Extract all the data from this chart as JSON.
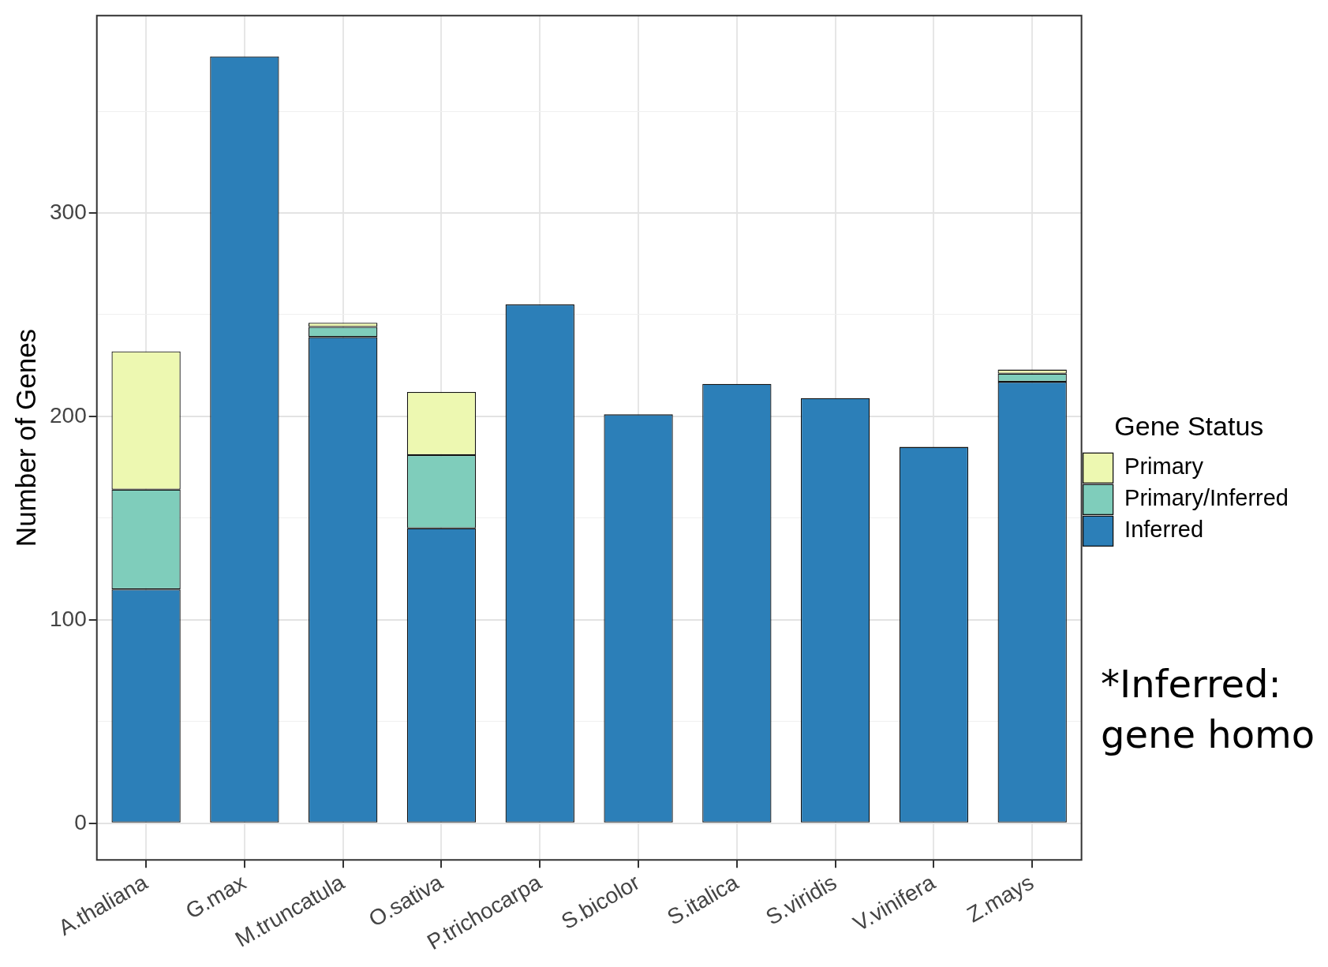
{
  "chart_data": {
    "type": "bar",
    "stacked": true,
    "ylabel": "Number of Genes",
    "legend_title": "Gene Status",
    "legend": "right",
    "categories": [
      "A.thaliana",
      "G.max",
      "M.truncatula",
      "O.sativa",
      "P.trichocarpa",
      "S.bicolor",
      "S.italica",
      "S.viridis",
      "V.vinifera",
      "Z.mays"
    ],
    "series": [
      {
        "name": "Inferred",
        "color": "#2c7fb8",
        "values": [
          115,
          377,
          239,
          145,
          255,
          201,
          216,
          209,
          185,
          217
        ]
      },
      {
        "name": "Primary/Inferred",
        "color": "#7fcdbb",
        "values": [
          49,
          null,
          5,
          36,
          null,
          null,
          null,
          null,
          null,
          4
        ]
      },
      {
        "name": "Primary",
        "color": "#edf8b1",
        "values": [
          68,
          null,
          2,
          31,
          null,
          null,
          null,
          null,
          null,
          2
        ]
      }
    ],
    "ylim": [
      -18,
      397
    ],
    "yticks": [
      0,
      {
        "value": 50,
        "label": null
      },
      100,
      {
        "value": 150,
        "label": null
      },
      200,
      {
        "value": 250,
        "label": null
      },
      300,
      {
        "value": 350,
        "label": null
      }
    ],
    "grid": true,
    "annotations": [
      "*Inferred: gene homo"
    ]
  }
}
